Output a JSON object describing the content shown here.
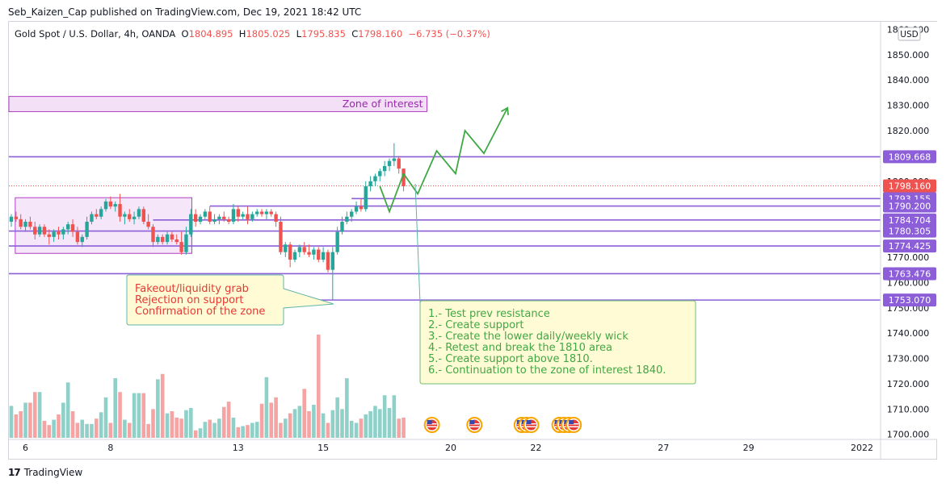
{
  "header": {
    "published": "Seb_Kaizen_Cap published on TradingView.com, Dec 19, 2021 18:42 UTC"
  },
  "legend": {
    "symbol": "Gold Spot / U.S. Dollar, 4h, OANDA",
    "open_label": "O",
    "open": "1804.895",
    "high_label": "H",
    "high": "1805.025",
    "low_label": "L",
    "low": "1795.835",
    "close_label": "C",
    "close": "1798.160",
    "change": "−6.735 (−0.37%)"
  },
  "footer": {
    "brand": "TradingView",
    "logo_text": "17"
  },
  "colors": {
    "up": "#26a69a",
    "down": "#ef5350",
    "vol_up": "#8fd0c8",
    "vol_down": "#f5a3a3",
    "level": "#8c5fd9",
    "zone_fill": "#f3e0f7",
    "zone_border": "#b03fc2",
    "projection": "#3fa845",
    "note_fill": "#fffbd4",
    "note_border": "#6fbf73",
    "price_label": "#ef5350"
  },
  "chart_data": {
    "type": "candlestick",
    "title": "Gold Spot / U.S. Dollar, 4h, OANDA",
    "y_axis": {
      "unit": "USD",
      "range": [
        1698,
        1863
      ],
      "ticks": [
        "1700.000",
        "1710.000",
        "1720.000",
        "1730.000",
        "1740.000",
        "1750.000",
        "1760.000",
        "1770.000",
        "1780.000",
        "1790.000",
        "1800.000",
        "1810.000",
        "1820.000",
        "1830.000",
        "1840.000",
        "1850.000",
        "1860.000"
      ]
    },
    "x_axis": {
      "ticks": [
        {
          "label": "6",
          "idx": 3
        },
        {
          "label": "8",
          "idx": 21
        },
        {
          "label": "13",
          "idx": 48
        },
        {
          "label": "15",
          "idx": 66
        },
        {
          "label": "20",
          "idx": 93
        },
        {
          "label": "22",
          "idx": 111
        },
        {
          "label": "27",
          "idx": 138
        },
        {
          "label": "29",
          "idx": 156
        },
        {
          "label": "2022",
          "idx": 180
        }
      ]
    },
    "candles": [
      {
        "o": 1784,
        "h": 1787,
        "l": 1782,
        "c": 1786
      },
      {
        "o": 1786,
        "h": 1788,
        "l": 1784,
        "c": 1785
      },
      {
        "o": 1785,
        "h": 1787,
        "l": 1781,
        "c": 1782
      },
      {
        "o": 1782,
        "h": 1785,
        "l": 1780,
        "c": 1784
      },
      {
        "o": 1784,
        "h": 1786,
        "l": 1781,
        "c": 1782
      },
      {
        "o": 1782,
        "h": 1784,
        "l": 1777,
        "c": 1779
      },
      {
        "o": 1779,
        "h": 1783,
        "l": 1778,
        "c": 1782
      },
      {
        "o": 1782,
        "h": 1783,
        "l": 1778,
        "c": 1779
      },
      {
        "o": 1779,
        "h": 1781,
        "l": 1775,
        "c": 1778
      },
      {
        "o": 1778,
        "h": 1781,
        "l": 1776,
        "c": 1780
      },
      {
        "o": 1780,
        "h": 1782,
        "l": 1777,
        "c": 1779
      },
      {
        "o": 1779,
        "h": 1782,
        "l": 1777,
        "c": 1781
      },
      {
        "o": 1781,
        "h": 1784,
        "l": 1779,
        "c": 1783
      },
      {
        "o": 1783,
        "h": 1785,
        "l": 1778,
        "c": 1780
      },
      {
        "o": 1780,
        "h": 1782,
        "l": 1775,
        "c": 1776
      },
      {
        "o": 1776,
        "h": 1779,
        "l": 1774,
        "c": 1778
      },
      {
        "o": 1778,
        "h": 1786,
        "l": 1777,
        "c": 1784
      },
      {
        "o": 1784,
        "h": 1788,
        "l": 1783,
        "c": 1787
      },
      {
        "o": 1787,
        "h": 1789,
        "l": 1785,
        "c": 1786
      },
      {
        "o": 1786,
        "h": 1790,
        "l": 1785,
        "c": 1789
      },
      {
        "o": 1789,
        "h": 1793,
        "l": 1788,
        "c": 1792
      },
      {
        "o": 1792,
        "h": 1794,
        "l": 1789,
        "c": 1790
      },
      {
        "o": 1790,
        "h": 1792,
        "l": 1788,
        "c": 1791
      },
      {
        "o": 1791,
        "h": 1795,
        "l": 1784,
        "c": 1786
      },
      {
        "o": 1786,
        "h": 1788,
        "l": 1783,
        "c": 1787
      },
      {
        "o": 1787,
        "h": 1789,
        "l": 1784,
        "c": 1785
      },
      {
        "o": 1785,
        "h": 1788,
        "l": 1783,
        "c": 1786
      },
      {
        "o": 1786,
        "h": 1790,
        "l": 1785,
        "c": 1789
      },
      {
        "o": 1789,
        "h": 1790,
        "l": 1783,
        "c": 1784
      },
      {
        "o": 1784,
        "h": 1787,
        "l": 1781,
        "c": 1782
      },
      {
        "o": 1782,
        "h": 1783,
        "l": 1774,
        "c": 1776
      },
      {
        "o": 1776,
        "h": 1779,
        "l": 1775,
        "c": 1778
      },
      {
        "o": 1778,
        "h": 1779,
        "l": 1775,
        "c": 1776
      },
      {
        "o": 1776,
        "h": 1780,
        "l": 1775,
        "c": 1779
      },
      {
        "o": 1779,
        "h": 1780,
        "l": 1776,
        "c": 1777
      },
      {
        "o": 1777,
        "h": 1779,
        "l": 1775,
        "c": 1776
      },
      {
        "o": 1776,
        "h": 1780,
        "l": 1771,
        "c": 1772
      },
      {
        "o": 1772,
        "h": 1782,
        "l": 1771,
        "c": 1779
      },
      {
        "o": 1779,
        "h": 1789,
        "l": 1778,
        "c": 1787
      },
      {
        "o": 1787,
        "h": 1789,
        "l": 1782,
        "c": 1784
      },
      {
        "o": 1784,
        "h": 1787,
        "l": 1783,
        "c": 1786
      },
      {
        "o": 1786,
        "h": 1789,
        "l": 1785,
        "c": 1788
      },
      {
        "o": 1788,
        "h": 1790,
        "l": 1783,
        "c": 1784
      },
      {
        "o": 1784,
        "h": 1787,
        "l": 1783,
        "c": 1785
      },
      {
        "o": 1785,
        "h": 1787,
        "l": 1783,
        "c": 1786
      },
      {
        "o": 1786,
        "h": 1788,
        "l": 1784,
        "c": 1785
      },
      {
        "o": 1785,
        "h": 1786,
        "l": 1783,
        "c": 1784
      },
      {
        "o": 1784,
        "h": 1791,
        "l": 1783,
        "c": 1789
      },
      {
        "o": 1789,
        "h": 1790,
        "l": 1784,
        "c": 1786
      },
      {
        "o": 1786,
        "h": 1788,
        "l": 1785,
        "c": 1787
      },
      {
        "o": 1787,
        "h": 1790,
        "l": 1783,
        "c": 1785
      },
      {
        "o": 1785,
        "h": 1788,
        "l": 1784,
        "c": 1787
      },
      {
        "o": 1787,
        "h": 1789,
        "l": 1786,
        "c": 1788
      },
      {
        "o": 1788,
        "h": 1789,
        "l": 1786,
        "c": 1787
      },
      {
        "o": 1787,
        "h": 1789,
        "l": 1785,
        "c": 1788
      },
      {
        "o": 1788,
        "h": 1789,
        "l": 1786,
        "c": 1787
      },
      {
        "o": 1787,
        "h": 1788,
        "l": 1782,
        "c": 1784
      },
      {
        "o": 1784,
        "h": 1786,
        "l": 1771,
        "c": 1772
      },
      {
        "o": 1772,
        "h": 1776,
        "l": 1770,
        "c": 1775
      },
      {
        "o": 1775,
        "h": 1776,
        "l": 1766,
        "c": 1769
      },
      {
        "o": 1769,
        "h": 1773,
        "l": 1768,
        "c": 1772
      },
      {
        "o": 1772,
        "h": 1775,
        "l": 1770,
        "c": 1774
      },
      {
        "o": 1774,
        "h": 1776,
        "l": 1771,
        "c": 1772
      },
      {
        "o": 1772,
        "h": 1775,
        "l": 1770,
        "c": 1771
      },
      {
        "o": 1771,
        "h": 1774,
        "l": 1769,
        "c": 1773
      },
      {
        "o": 1773,
        "h": 1774,
        "l": 1768,
        "c": 1769
      },
      {
        "o": 1769,
        "h": 1774,
        "l": 1768,
        "c": 1772
      },
      {
        "o": 1772,
        "h": 1773,
        "l": 1764,
        "c": 1765
      },
      {
        "o": 1765,
        "h": 1774,
        "l": 1753,
        "c": 1772
      },
      {
        "o": 1772,
        "h": 1782,
        "l": 1771,
        "c": 1780
      },
      {
        "o": 1780,
        "h": 1786,
        "l": 1779,
        "c": 1784
      },
      {
        "o": 1784,
        "h": 1788,
        "l": 1783,
        "c": 1786
      },
      {
        "o": 1786,
        "h": 1789,
        "l": 1784,
        "c": 1788
      },
      {
        "o": 1788,
        "h": 1792,
        "l": 1787,
        "c": 1790
      },
      {
        "o": 1790,
        "h": 1793,
        "l": 1788,
        "c": 1789
      },
      {
        "o": 1789,
        "h": 1800,
        "l": 1788,
        "c": 1798
      },
      {
        "o": 1798,
        "h": 1802,
        "l": 1796,
        "c": 1800
      },
      {
        "o": 1800,
        "h": 1803,
        "l": 1798,
        "c": 1802
      },
      {
        "o": 1802,
        "h": 1805,
        "l": 1800,
        "c": 1804
      },
      {
        "o": 1804,
        "h": 1808,
        "l": 1802,
        "c": 1806
      },
      {
        "o": 1806,
        "h": 1809,
        "l": 1804,
        "c": 1808
      },
      {
        "o": 1808,
        "h": 1815,
        "l": 1806,
        "c": 1809
      },
      {
        "o": 1809,
        "h": 1810,
        "l": 1803,
        "c": 1805
      },
      {
        "o": 1805,
        "h": 1805,
        "l": 1796,
        "c": 1798
      }
    ],
    "volume_max_ref": 1,
    "volumes": [
      0.3,
      0.22,
      0.25,
      0.33,
      0.33,
      0.43,
      0.43,
      0.16,
      0.12,
      0.17,
      0.22,
      0.33,
      0.52,
      0.25,
      0.14,
      0.17,
      0.13,
      0.13,
      0.18,
      0.24,
      0.38,
      0.14,
      0.56,
      0.43,
      0.17,
      0.14,
      0.42,
      0.42,
      0.42,
      0.13,
      0.27,
      0.55,
      0.6,
      0.23,
      0.25,
      0.19,
      0.18,
      0.26,
      0.28,
      0.07,
      0.09,
      0.15,
      0.17,
      0.14,
      0.18,
      0.29,
      0.34,
      0.19,
      0.1,
      0.11,
      0.12,
      0.14,
      0.15,
      0.32,
      0.57,
      0.33,
      0.38,
      0.14,
      0.18,
      0.23,
      0.27,
      0.3,
      0.46,
      0.25,
      0.31,
      0.97,
      0.23,
      0.14,
      0.26,
      0.38,
      0.27,
      0.56,
      0.16,
      0.14,
      0.18,
      0.22,
      0.25,
      0.3,
      0.27,
      0.4,
      0.28,
      0.4,
      0.18,
      0.19
    ],
    "levels": [
      {
        "price": 1809.668,
        "label": "1809.668",
        "start_idx": 0
      },
      {
        "price": 1793.155,
        "label": "1793.155",
        "start_idx": 72
      },
      {
        "price": 1790.2,
        "label": "1790.200",
        "start_idx": 42
      },
      {
        "price": 1784.704,
        "label": "1784.704",
        "start_idx": 30
      },
      {
        "price": 1780.305,
        "label": "1780.305",
        "start_idx": 0
      },
      {
        "price": 1774.425,
        "label": "1774.425",
        "start_idx": 0
      },
      {
        "price": 1763.476,
        "label": "1763.476",
        "start_idx": 0
      },
      {
        "price": 1753.07,
        "label": "1753.070",
        "start_idx": 57
      }
    ],
    "last_price": {
      "price": 1798.16,
      "label": "1798.160"
    },
    "zone_of_interest": {
      "label": "Zone of interest",
      "top": 1833.5,
      "bottom": 1827.5,
      "end_idx": 70
    },
    "consolidation_box": {
      "top": 1793.5,
      "bottom": 1771.5,
      "start_idx": 1,
      "end_idx": 37
    },
    "projection": [
      {
        "idx": 78,
        "price": 1798
      },
      {
        "idx": 80,
        "price": 1788
      },
      {
        "idx": 83,
        "price": 1803
      },
      {
        "idx": 86,
        "price": 1795
      },
      {
        "idx": 90,
        "price": 1812
      },
      {
        "idx": 94,
        "price": 1803
      },
      {
        "idx": 96,
        "price": 1820
      },
      {
        "idx": 100,
        "price": 1811
      },
      {
        "idx": 105,
        "price": 1829
      }
    ],
    "callouts": [
      {
        "id": "fakeout",
        "lines": [
          "Fakeout/liquidity grab",
          "Rejection on support",
          "Confirmation of the zone"
        ],
        "text_color": "#e53935"
      },
      {
        "id": "plan",
        "lines": [
          "1.- Test prev resistance",
          "2.- Create support",
          "3.- Create the lower daily/weekly wick",
          "4.- Retest and break the 1810 area",
          "5.- Create support above 1810.",
          "6.- Continuation to the zone of interest 1840."
        ],
        "text_color": "#3fa845"
      }
    ],
    "event_icon_idx": [
      89,
      98,
      108,
      109,
      110,
      116,
      117,
      118,
      119
    ],
    "grid": false,
    "legend_position": "top-left"
  }
}
